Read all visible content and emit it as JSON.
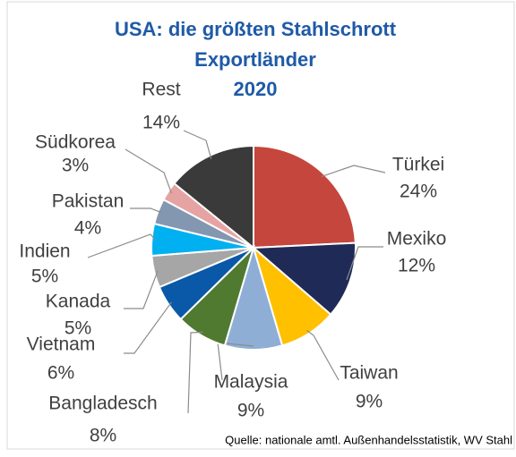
{
  "chart_data": {
    "type": "pie",
    "title_lines": [
      "USA: die größten Stahlschrott",
      "Exportländer",
      "2020"
    ],
    "categories": [
      "Türkei",
      "Mexiko",
      "Taiwan",
      "Malaysia",
      "Bangladesch",
      "Vietnam",
      "Kanada",
      "Indien",
      "Pakistan",
      "Südkorea",
      "Rest"
    ],
    "values": [
      24,
      12,
      9,
      9,
      8,
      6,
      5,
      5,
      4,
      3,
      14
    ],
    "value_labels": [
      "24%",
      "12%",
      "9%",
      "9%",
      "8%",
      "6%",
      "5%",
      "5%",
      "4%",
      "3%",
      "14%"
    ],
    "colors": [
      "#c5463d",
      "#1f2a57",
      "#ffc000",
      "#8eaed6",
      "#4f7a2f",
      "#0a58a8",
      "#a6a6a6",
      "#00b0f0",
      "#8497b0",
      "#e6a3a3",
      "#3a3a3a"
    ],
    "source": "Quelle: nationale amtl. Außenhandelsstatistik, WV Stahl"
  }
}
